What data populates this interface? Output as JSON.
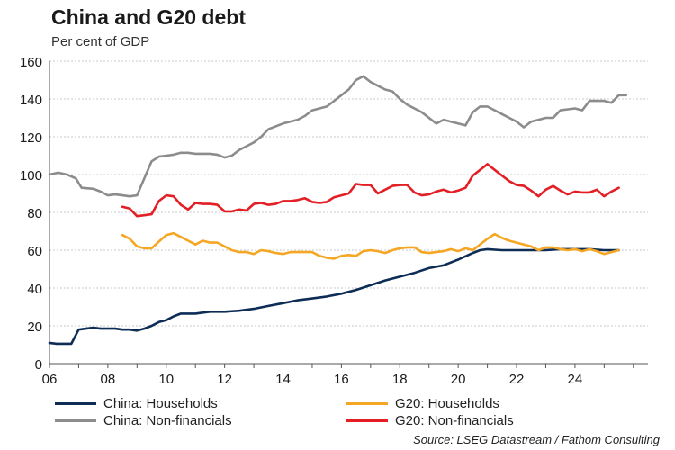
{
  "title": "China and G20 debt",
  "subtitle": "Per cent of GDP",
  "source": "Source: LSEG Datastream / Fathom Consulting",
  "chart_data": {
    "type": "line",
    "xlim": [
      2006,
      2026.5
    ],
    "ylim": [
      0,
      160
    ],
    "yticks": [
      0,
      20,
      40,
      60,
      80,
      100,
      120,
      140,
      160
    ],
    "xticks": [
      2006,
      2008,
      2010,
      2012,
      2014,
      2016,
      2018,
      2020,
      2022,
      2024
    ],
    "xtick_labels": [
      "06",
      "08",
      "10",
      "12",
      "14",
      "16",
      "18",
      "20",
      "22",
      "24"
    ],
    "grid": true,
    "series": [
      {
        "name": "China: Households",
        "color": "#0d2d57",
        "points": [
          [
            2006.0,
            11
          ],
          [
            2006.25,
            10.5
          ],
          [
            2006.5,
            10.5
          ],
          [
            2006.75,
            10.5
          ],
          [
            2007.0,
            18
          ],
          [
            2007.25,
            18.5
          ],
          [
            2007.5,
            19
          ],
          [
            2007.75,
            18.5
          ],
          [
            2008.0,
            18.5
          ],
          [
            2008.25,
            18.5
          ],
          [
            2008.5,
            18
          ],
          [
            2008.75,
            18
          ],
          [
            2009.0,
            17.5
          ],
          [
            2009.25,
            18.5
          ],
          [
            2009.5,
            20
          ],
          [
            2009.75,
            22
          ],
          [
            2010.0,
            23
          ],
          [
            2010.25,
            25
          ],
          [
            2010.5,
            26.5
          ],
          [
            2010.75,
            26.5
          ],
          [
            2011.0,
            26.5
          ],
          [
            2011.25,
            27
          ],
          [
            2011.5,
            27.5
          ],
          [
            2012.0,
            27.5
          ],
          [
            2012.5,
            28
          ],
          [
            2013.0,
            29
          ],
          [
            2013.5,
            30.5
          ],
          [
            2014.0,
            32
          ],
          [
            2014.5,
            33.5
          ],
          [
            2015.0,
            34.5
          ],
          [
            2015.5,
            35.5
          ],
          [
            2016.0,
            37
          ],
          [
            2016.5,
            39
          ],
          [
            2017.0,
            41.5
          ],
          [
            2017.5,
            44
          ],
          [
            2018.0,
            46
          ],
          [
            2018.5,
            48
          ],
          [
            2019.0,
            50.5
          ],
          [
            2019.5,
            52
          ],
          [
            2020.0,
            55
          ],
          [
            2020.5,
            58.5
          ],
          [
            2020.75,
            60
          ],
          [
            2021.0,
            60.5
          ],
          [
            2021.5,
            60
          ],
          [
            2022.0,
            60
          ],
          [
            2022.5,
            60
          ],
          [
            2023.0,
            60
          ],
          [
            2023.5,
            60.5
          ],
          [
            2024.0,
            60.5
          ],
          [
            2024.5,
            60.5
          ],
          [
            2025.0,
            60
          ],
          [
            2025.5,
            60
          ]
        ]
      },
      {
        "name": "China: Non-financials",
        "color": "#8c8c8c",
        "points": [
          [
            2006.0,
            100
          ],
          [
            2006.3,
            101
          ],
          [
            2006.6,
            100
          ],
          [
            2006.9,
            98
          ],
          [
            2007.1,
            93
          ],
          [
            2007.5,
            92.5
          ],
          [
            2007.75,
            91
          ],
          [
            2008.0,
            89
          ],
          [
            2008.25,
            89.5
          ],
          [
            2008.5,
            89
          ],
          [
            2008.75,
            88.5
          ],
          [
            2009.0,
            89
          ],
          [
            2009.25,
            98
          ],
          [
            2009.5,
            107
          ],
          [
            2009.75,
            109.5
          ],
          [
            2010.0,
            110
          ],
          [
            2010.25,
            110.5
          ],
          [
            2010.5,
            111.5
          ],
          [
            2010.75,
            111.5
          ],
          [
            2011.0,
            111
          ],
          [
            2011.5,
            111
          ],
          [
            2011.75,
            110.5
          ],
          [
            2012.0,
            109
          ],
          [
            2012.25,
            110
          ],
          [
            2012.5,
            113
          ],
          [
            2012.75,
            115
          ],
          [
            2013.0,
            117
          ],
          [
            2013.25,
            120
          ],
          [
            2013.5,
            124
          ],
          [
            2014.0,
            127
          ],
          [
            2014.5,
            129
          ],
          [
            2014.75,
            131
          ],
          [
            2015.0,
            134
          ],
          [
            2015.25,
            135
          ],
          [
            2015.5,
            136
          ],
          [
            2015.75,
            139
          ],
          [
            2016.0,
            142
          ],
          [
            2016.25,
            145
          ],
          [
            2016.5,
            150
          ],
          [
            2016.75,
            152
          ],
          [
            2017.0,
            149
          ],
          [
            2017.25,
            147
          ],
          [
            2017.5,
            145
          ],
          [
            2017.75,
            144
          ],
          [
            2018.0,
            140
          ],
          [
            2018.25,
            137
          ],
          [
            2018.5,
            135
          ],
          [
            2018.75,
            133
          ],
          [
            2019.0,
            130
          ],
          [
            2019.25,
            127
          ],
          [
            2019.5,
            129
          ],
          [
            2019.75,
            128
          ],
          [
            2020.0,
            127
          ],
          [
            2020.25,
            126
          ],
          [
            2020.5,
            133
          ],
          [
            2020.75,
            136
          ],
          [
            2021.0,
            136
          ],
          [
            2021.25,
            134
          ],
          [
            2021.5,
            132
          ],
          [
            2021.75,
            130
          ],
          [
            2022.0,
            128
          ],
          [
            2022.25,
            125
          ],
          [
            2022.5,
            128
          ],
          [
            2022.75,
            129
          ],
          [
            2023.0,
            130
          ],
          [
            2023.25,
            130
          ],
          [
            2023.5,
            134
          ],
          [
            2024.0,
            135
          ],
          [
            2024.25,
            134
          ],
          [
            2024.5,
            139
          ],
          [
            2025.0,
            139
          ],
          [
            2025.25,
            138
          ],
          [
            2025.5,
            142
          ],
          [
            2025.75,
            142
          ]
        ]
      },
      {
        "name": "G20: Households",
        "color": "#f5a623",
        "points": [
          [
            2008.5,
            68
          ],
          [
            2008.75,
            66
          ],
          [
            2009.0,
            62
          ],
          [
            2009.25,
            61
          ],
          [
            2009.5,
            61
          ],
          [
            2009.75,
            64.5
          ],
          [
            2010.0,
            68
          ],
          [
            2010.25,
            69
          ],
          [
            2010.5,
            67
          ],
          [
            2010.75,
            65
          ],
          [
            2011.0,
            63
          ],
          [
            2011.25,
            65
          ],
          [
            2011.5,
            64
          ],
          [
            2011.75,
            64
          ],
          [
            2012.0,
            62
          ],
          [
            2012.25,
            60
          ],
          [
            2012.5,
            59
          ],
          [
            2012.75,
            59
          ],
          [
            2013.0,
            58
          ],
          [
            2013.25,
            60
          ],
          [
            2013.5,
            59.5
          ],
          [
            2013.75,
            58.5
          ],
          [
            2014.0,
            58
          ],
          [
            2014.25,
            59
          ],
          [
            2014.5,
            59
          ],
          [
            2014.75,
            59
          ],
          [
            2015.0,
            59
          ],
          [
            2015.25,
            57
          ],
          [
            2015.5,
            56
          ],
          [
            2015.75,
            55.5
          ],
          [
            2016.0,
            57
          ],
          [
            2016.25,
            57.5
          ],
          [
            2016.5,
            57
          ],
          [
            2016.75,
            59.5
          ],
          [
            2017.0,
            60
          ],
          [
            2017.25,
            59.5
          ],
          [
            2017.5,
            58.5
          ],
          [
            2017.75,
            60
          ],
          [
            2018.0,
            61
          ],
          [
            2018.25,
            61.5
          ],
          [
            2018.5,
            61.5
          ],
          [
            2018.75,
            59
          ],
          [
            2019.0,
            58.5
          ],
          [
            2019.25,
            59
          ],
          [
            2019.5,
            59.5
          ],
          [
            2019.75,
            60.5
          ],
          [
            2020.0,
            59.5
          ],
          [
            2020.25,
            61
          ],
          [
            2020.5,
            60
          ],
          [
            2020.75,
            63
          ],
          [
            2021.0,
            66
          ],
          [
            2021.25,
            68.5
          ],
          [
            2021.5,
            66.5
          ],
          [
            2021.75,
            65
          ],
          [
            2022.0,
            64
          ],
          [
            2022.25,
            63
          ],
          [
            2022.5,
            62
          ],
          [
            2022.75,
            60
          ],
          [
            2023.0,
            61.5
          ],
          [
            2023.25,
            61.5
          ],
          [
            2023.5,
            60.5
          ],
          [
            2023.75,
            60
          ],
          [
            2024.0,
            60.5
          ],
          [
            2024.25,
            59.5
          ],
          [
            2024.5,
            60.5
          ],
          [
            2024.75,
            59.5
          ],
          [
            2025.0,
            58
          ],
          [
            2025.25,
            59
          ],
          [
            2025.5,
            60
          ]
        ]
      },
      {
        "name": "G20: Non-financials",
        "color": "#e31e24",
        "points": [
          [
            2008.5,
            83
          ],
          [
            2008.75,
            82
          ],
          [
            2009.0,
            78
          ],
          [
            2009.25,
            78.5
          ],
          [
            2009.5,
            79
          ],
          [
            2009.75,
            86
          ],
          [
            2010.0,
            89
          ],
          [
            2010.25,
            88.5
          ],
          [
            2010.5,
            84
          ],
          [
            2010.75,
            81.5
          ],
          [
            2011.0,
            85
          ],
          [
            2011.25,
            84.5
          ],
          [
            2011.5,
            84.5
          ],
          [
            2011.75,
            84
          ],
          [
            2012.0,
            80.5
          ],
          [
            2012.25,
            80.5
          ],
          [
            2012.5,
            81.5
          ],
          [
            2012.75,
            81
          ],
          [
            2013.0,
            84.5
          ],
          [
            2013.25,
            85
          ],
          [
            2013.5,
            84
          ],
          [
            2013.75,
            84.5
          ],
          [
            2014.0,
            86
          ],
          [
            2014.25,
            86
          ],
          [
            2014.5,
            86.5
          ],
          [
            2014.75,
            87.5
          ],
          [
            2015.0,
            85.5
          ],
          [
            2015.25,
            85
          ],
          [
            2015.5,
            85.5
          ],
          [
            2015.75,
            88
          ],
          [
            2016.0,
            89
          ],
          [
            2016.25,
            90
          ],
          [
            2016.5,
            95
          ],
          [
            2016.75,
            94.5
          ],
          [
            2017.0,
            94.5
          ],
          [
            2017.25,
            90
          ],
          [
            2017.5,
            92
          ],
          [
            2017.75,
            94
          ],
          [
            2018.0,
            94.5
          ],
          [
            2018.25,
            94.5
          ],
          [
            2018.5,
            90.5
          ],
          [
            2018.75,
            89
          ],
          [
            2019.0,
            89.5
          ],
          [
            2019.25,
            91
          ],
          [
            2019.5,
            92
          ],
          [
            2019.75,
            90.5
          ],
          [
            2020.0,
            91.5
          ],
          [
            2020.25,
            93
          ],
          [
            2020.5,
            99.5
          ],
          [
            2020.75,
            102.5
          ],
          [
            2021.0,
            105.5
          ],
          [
            2021.25,
            102.5
          ],
          [
            2021.5,
            99.5
          ],
          [
            2021.75,
            96.5
          ],
          [
            2022.0,
            94.5
          ],
          [
            2022.25,
            94
          ],
          [
            2022.5,
            91.5
          ],
          [
            2022.75,
            88.5
          ],
          [
            2023.0,
            92
          ],
          [
            2023.25,
            94
          ],
          [
            2023.5,
            91.5
          ],
          [
            2023.75,
            89.5
          ],
          [
            2024.0,
            91
          ],
          [
            2024.25,
            90.5
          ],
          [
            2024.5,
            90.5
          ],
          [
            2024.75,
            92
          ],
          [
            2025.0,
            88.5
          ],
          [
            2025.25,
            91
          ],
          [
            2025.5,
            93
          ]
        ]
      }
    ],
    "legend": [
      {
        "label": "China: Households",
        "color": "#0d2d57"
      },
      {
        "label": "G20: Households",
        "color": "#f5a623"
      },
      {
        "label": "China: Non-financials",
        "color": "#8c8c8c"
      },
      {
        "label": "G20: Non-financials",
        "color": "#e31e24"
      }
    ]
  }
}
